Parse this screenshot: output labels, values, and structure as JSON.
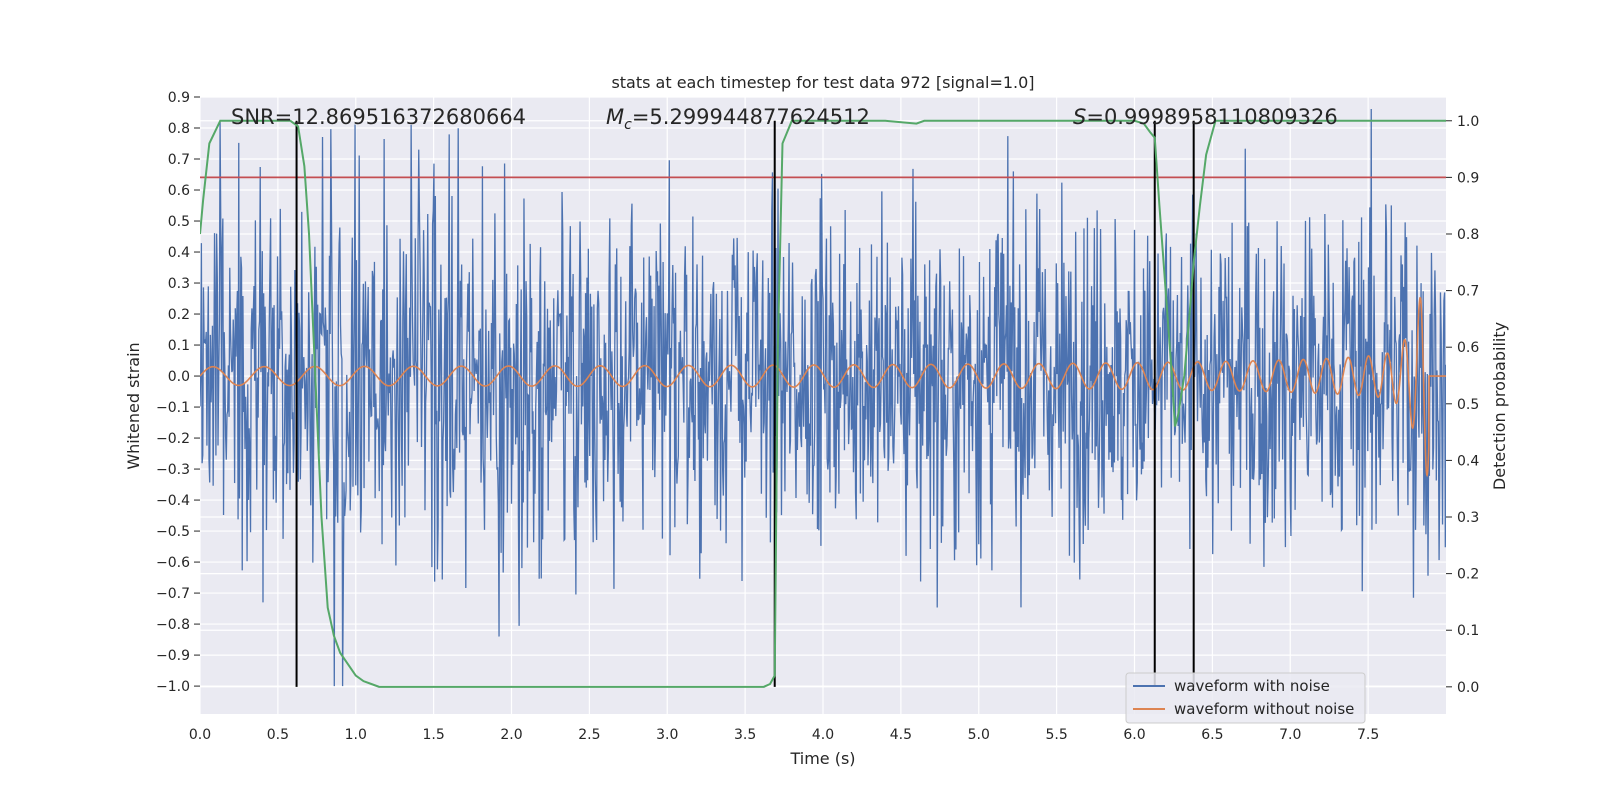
{
  "chart_data": {
    "type": "line",
    "title": "stats at each timestep for test data 972 [signal=1.0]",
    "xlabel": "Time (s)",
    "ylabel_left": "Whitened strain",
    "ylabel_right": "Detection probability",
    "xlim": [
      0.0,
      8.0
    ],
    "ylim_left": [
      -1.09,
      0.9
    ],
    "ylim_right": [
      -0.048,
      1.042
    ],
    "xticks": [
      "0.0",
      "0.5",
      "1.0",
      "1.5",
      "2.0",
      "2.5",
      "3.0",
      "3.5",
      "4.0",
      "4.5",
      "5.0",
      "5.5",
      "6.0",
      "6.5",
      "7.0",
      "7.5"
    ],
    "yticks_left": [
      "0.9",
      "0.8",
      "0.7",
      "0.6",
      "0.5",
      "0.4",
      "0.3",
      "0.2",
      "0.1",
      "0.0",
      "−0.1",
      "−0.2",
      "−0.3",
      "−0.4",
      "−0.5",
      "−0.6",
      "−0.7",
      "−0.8",
      "−0.9",
      "−1.0"
    ],
    "yticks_right": [
      "1.0",
      "0.9",
      "0.8",
      "0.7",
      "0.6",
      "0.5",
      "0.4",
      "0.3",
      "0.2",
      "0.1",
      "0.0"
    ],
    "grid": true,
    "legend_position": "lower-right",
    "annotations": {
      "snr": "SNR=12.869516372680664",
      "mc_prefix": "M",
      "mc_sub": "c",
      "mc_value": "=5.299944877624512",
      "s_prefix": "S",
      "s_value": "=0.9998958110809326"
    },
    "threshold": {
      "value": 0.9,
      "axis": "right",
      "color": "#c44e52"
    },
    "vertical_lines": [
      0.62,
      3.69,
      6.13,
      6.38
    ],
    "series": [
      {
        "name": "waveform with noise",
        "color": "#4c72b0",
        "axis": "left",
        "kind": "noise",
        "typical_amplitude": 0.3,
        "peak_values": [
          0.8,
          -0.76,
          0.81,
          -0.98,
          -0.99,
          0.8,
          0.79,
          0.78,
          0.78,
          0.77,
          -0.71,
          -0.85,
          -0.81
        ]
      },
      {
        "name": "waveform without noise",
        "color": "#dd8452",
        "axis": "left",
        "kind": "chirp",
        "start_amplitude": 0.03,
        "peak_amplitude": 0.32,
        "merger_time": 7.86,
        "end_time": 8.0
      },
      {
        "name": "",
        "color": "#55a868",
        "axis": "right",
        "x": [
          0.0,
          0.02,
          0.06,
          0.13,
          0.2,
          0.3,
          0.4,
          0.5,
          0.58,
          0.63,
          0.67,
          0.7,
          0.74,
          0.78,
          0.82,
          0.86,
          0.9,
          0.95,
          1.0,
          1.05,
          1.1,
          1.15,
          1.2,
          1.3,
          1.5,
          2.0,
          2.5,
          3.0,
          3.5,
          3.62,
          3.66,
          3.69,
          3.71,
          3.74,
          3.8,
          3.9,
          4.0,
          4.2,
          4.4,
          4.6,
          4.65,
          4.7,
          5.0,
          5.5,
          6.0,
          6.06,
          6.1,
          6.13,
          6.16,
          6.2,
          6.24,
          6.26,
          6.28,
          6.32,
          6.36,
          6.38,
          6.42,
          6.46,
          6.52,
          6.6,
          7.0,
          7.5,
          8.0
        ],
        "y": [
          0.8,
          0.86,
          0.96,
          1.0,
          1.0,
          1.0,
          1.0,
          1.0,
          1.0,
          0.99,
          0.92,
          0.8,
          0.55,
          0.3,
          0.14,
          0.09,
          0.06,
          0.04,
          0.02,
          0.01,
          0.005,
          0.0,
          0.0,
          0.0,
          0.0,
          0.0,
          0.0,
          0.0,
          0.0,
          0.0,
          0.005,
          0.02,
          0.6,
          0.96,
          1.0,
          1.0,
          1.0,
          1.0,
          1.0,
          0.995,
          1.0,
          1.0,
          1.0,
          1.0,
          1.0,
          0.995,
          0.98,
          0.97,
          0.85,
          0.7,
          0.55,
          0.46,
          0.48,
          0.55,
          0.68,
          0.75,
          0.85,
          0.94,
          1.0,
          1.0,
          1.0,
          1.0,
          1.0
        ]
      }
    ]
  }
}
